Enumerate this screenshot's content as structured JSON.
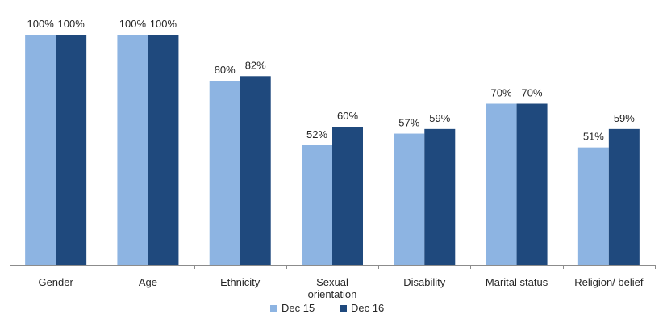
{
  "chart_data": {
    "type": "bar",
    "categories": [
      "Gender",
      "Age",
      "Ethnicity",
      "Sexual orientation",
      "Disability",
      "Marital status",
      "Religion/ belief"
    ],
    "category_lines": [
      [
        "Gender"
      ],
      [
        "Age"
      ],
      [
        "Ethnicity"
      ],
      [
        "Sexual",
        "orientation"
      ],
      [
        "Disability"
      ],
      [
        "Marital status"
      ],
      [
        "Religion/ belief"
      ]
    ],
    "series": [
      {
        "name": "Dec 15",
        "color": "#8DB4E2",
        "values": [
          100,
          100,
          80,
          52,
          57,
          70,
          51
        ]
      },
      {
        "name": "Dec 16",
        "color": "#1F497D",
        "values": [
          100,
          100,
          82,
          60,
          59,
          70,
          59
        ]
      }
    ],
    "value_suffix": "%",
    "ylim": [
      0,
      100
    ],
    "grid": false,
    "legend": "bottom",
    "title": "",
    "xlabel": "",
    "ylabel": ""
  }
}
